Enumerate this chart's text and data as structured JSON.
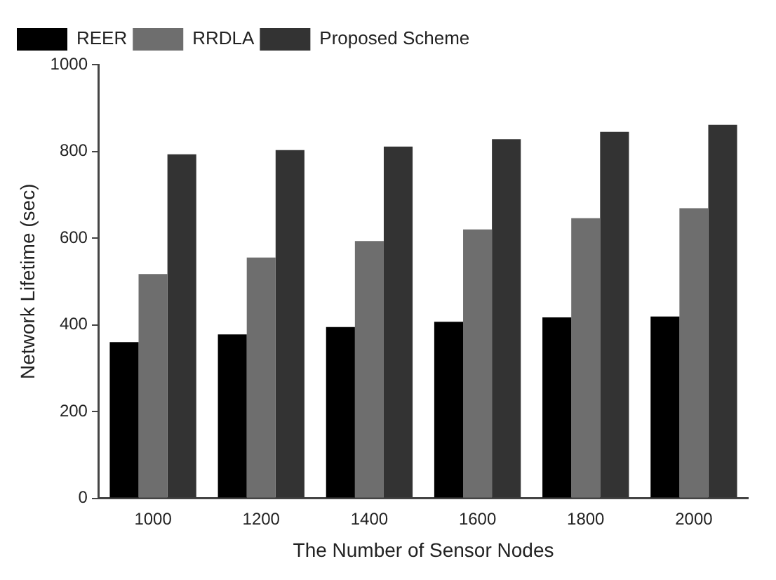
{
  "chart_data": {
    "type": "bar",
    "xlabel": "The Number of Sensor Nodes",
    "ylabel": "Network Lifetime (sec)",
    "categories": [
      "1000",
      "1200",
      "1400",
      "1600",
      "1800",
      "2000"
    ],
    "series": [
      {
        "name": "REER",
        "color": "#000000",
        "values": [
          360,
          378,
          395,
          407,
          417,
          419
        ]
      },
      {
        "name": "RRDLA",
        "color": "#6e6e6e",
        "values": [
          517,
          555,
          593,
          620,
          646,
          669
        ]
      },
      {
        "name": "Proposed Scheme",
        "color": "#333333",
        "values": [
          793,
          803,
          811,
          828,
          845,
          861
        ]
      }
    ],
    "ylim": [
      0,
      1000
    ],
    "yticks": [
      0,
      200,
      400,
      600,
      800,
      1000
    ],
    "grid": false,
    "legend": "top left"
  }
}
